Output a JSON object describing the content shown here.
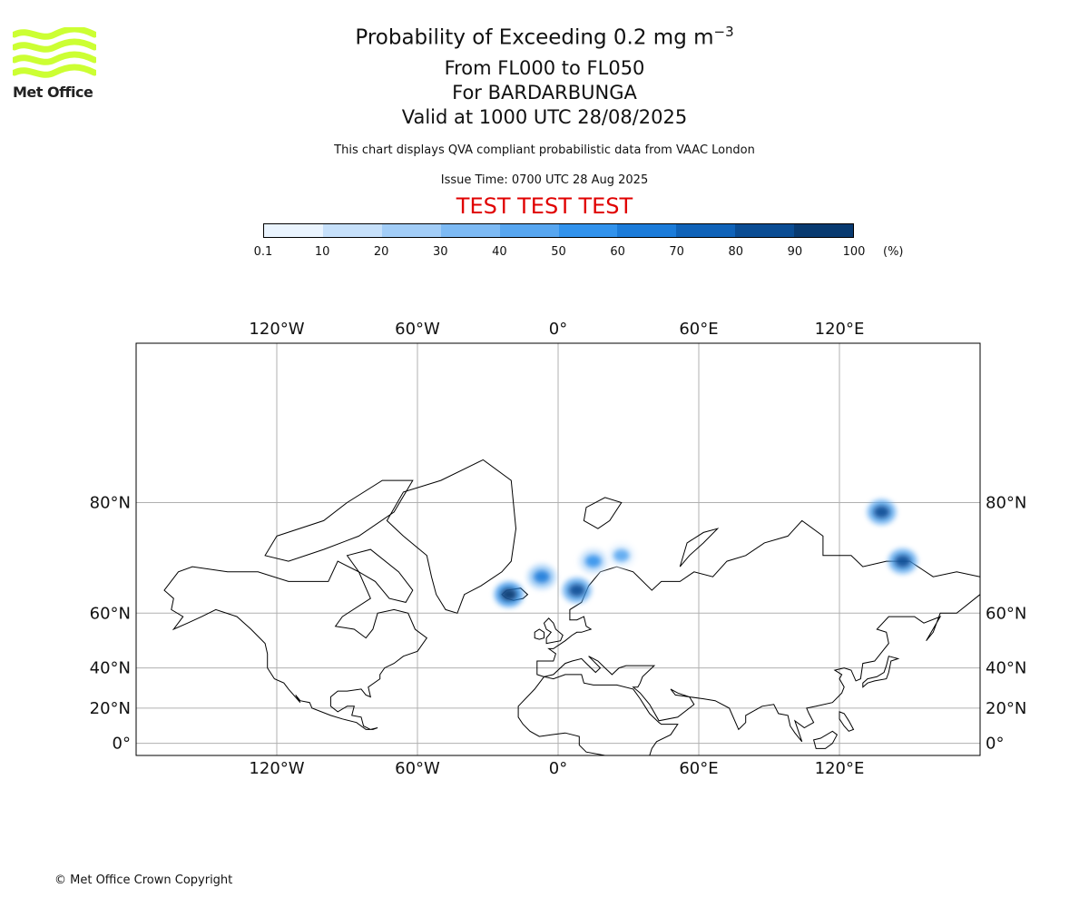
{
  "header": {
    "title_main": "Probability of Exceeding 0.2 mg m",
    "title_sup": "−3",
    "line2": "From FL000 to FL050",
    "line3": "For BARDARBUNGA",
    "line4": "Valid at 1000 UTC 28/08/2025",
    "description": "This chart displays QVA compliant probabilistic data from VAAC London",
    "issue_time": "Issue Time: 0700 UTC 28 Aug 2025",
    "test_banner": "TEST TEST TEST",
    "test_color": "#e00000"
  },
  "logo": {
    "text": "Met Office",
    "icon": "met-office-wave-logo",
    "color": "#ccff33"
  },
  "colorbar": {
    "ticks": [
      "0.1",
      "10",
      "20",
      "30",
      "40",
      "50",
      "60",
      "70",
      "80",
      "90",
      "100"
    ],
    "unit": "(%)",
    "colors": [
      "#eaf4fe",
      "#c6e0fa",
      "#a2cdf7",
      "#7dbaf4",
      "#57a6f0",
      "#3192ec",
      "#1b7bd9",
      "#0f62b8",
      "#0a4c93",
      "#083a70",
      "#052a52"
    ]
  },
  "map": {
    "projection": "Mercator",
    "lon_labels": [
      "120°W",
      "60°W",
      "0°",
      "60°E",
      "120°E"
    ],
    "lat_labels": [
      "80°N",
      "60°N",
      "40°N",
      "20°N",
      "0°"
    ],
    "lon_values": [
      -120,
      -60,
      0,
      60,
      120
    ],
    "lat_values": [
      80,
      60,
      40,
      20,
      0
    ],
    "lon_range": [
      -180,
      180
    ],
    "lat_range": [
      -7,
      88
    ],
    "grid": true,
    "plume_regions": [
      {
        "name": "iceland-plume",
        "lon": -21,
        "lat": 65,
        "probability": 90
      },
      {
        "name": "norwegian-sea-plume",
        "lon": -7,
        "lat": 69,
        "probability": 60
      },
      {
        "name": "scandinavia-coast-plume",
        "lon": 8,
        "lat": 66,
        "probability": 80
      },
      {
        "name": "barents-sea-plume",
        "lon": 15,
        "lat": 72,
        "probability": 50
      },
      {
        "name": "kola-plume",
        "lon": 27,
        "lat": 73,
        "probability": 40
      },
      {
        "name": "laptev-sea-plume",
        "lon": 138,
        "lat": 79,
        "probability": 80
      },
      {
        "name": "east-siberia-plume",
        "lon": 147,
        "lat": 72,
        "probability": 80
      }
    ]
  },
  "footer": {
    "copyright": "© Met Office Crown Copyright"
  }
}
